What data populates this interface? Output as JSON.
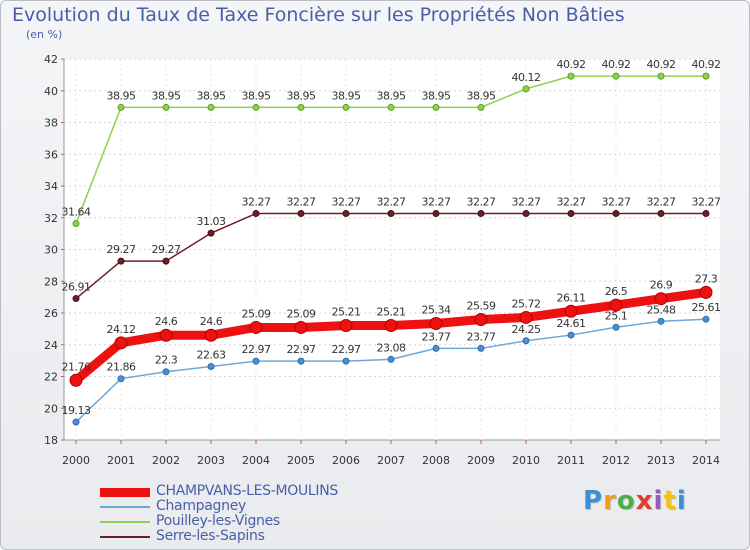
{
  "title": "Evolution du Taux de Taxe Foncière sur les Propriétés Non Bâties",
  "unit_label": "(en %)",
  "brand": {
    "text": "Proxiti",
    "colors": [
      "#3a8fd6",
      "#f39a1a",
      "#4caf4a",
      "#e53b2f",
      "#9b59b6",
      "#f1c40f",
      "#3a8fd6"
    ]
  },
  "chart_data": {
    "type": "line",
    "title": "Evolution du Taux de Taxe Foncière sur les Propriétés Non Bâties",
    "ylabel": "(en %)",
    "xlabel": "",
    "ylim": [
      18,
      42
    ],
    "yticks": [
      18,
      20,
      22,
      24,
      26,
      28,
      30,
      32,
      34,
      36,
      38,
      40,
      42
    ],
    "grid": true,
    "legend_position": "bottom-left",
    "categories": [
      "2000",
      "2001",
      "2002",
      "2003",
      "2004",
      "2005",
      "2006",
      "2007",
      "2008",
      "2009",
      "2010",
      "2011",
      "2012",
      "2013",
      "2014"
    ],
    "series": [
      {
        "name": "Serre-les-Sapins",
        "color": "#6b1f27",
        "values": [
          26.91,
          29.27,
          29.27,
          31.03,
          32.27,
          32.27,
          32.27,
          32.27,
          32.27,
          32.27,
          32.27,
          32.27,
          32.27,
          32.27,
          32.27
        ],
        "labels": [
          "26.91",
          "29.27",
          "29.27",
          "31.03",
          "32.27",
          "32.27",
          "32.27",
          "32.27",
          "32.27",
          "32.27",
          "32.27",
          "32.27",
          "32.27",
          "32.27",
          "32.27"
        ]
      },
      {
        "name": "Pouilley-les-Vignes",
        "color": "#8fd14f",
        "values": [
          31.64,
          38.95,
          38.95,
          38.95,
          38.95,
          38.95,
          38.95,
          38.95,
          38.95,
          38.95,
          40.12,
          40.92,
          40.92,
          40.92,
          40.92
        ],
        "labels": [
          "31.64",
          "38.95",
          "38.95",
          "38.95",
          "38.95",
          "38.95",
          "38.95",
          "38.95",
          "38.95",
          "38.95",
          "40.12",
          "40.92",
          "40.92",
          "40.92",
          "40.92"
        ]
      },
      {
        "name": "Champagney",
        "color": "#6ea7d8",
        "values": [
          19.13,
          21.86,
          22.3,
          22.63,
          22.97,
          22.97,
          22.97,
          23.08,
          23.77,
          23.77,
          24.25,
          24.61,
          25.1,
          25.48,
          25.61
        ],
        "labels": [
          "19.13",
          "21.86",
          "22.3",
          "22.63",
          "22.97",
          "22.97",
          "22.97",
          "23.08",
          "23.77",
          "23.77",
          "24.25",
          "24.61",
          "25.1",
          "25.48",
          "25.61"
        ]
      },
      {
        "name": "CHAMPVANS-LES-MOULINS",
        "color": "#ee1111",
        "values": [
          21.76,
          24.12,
          24.6,
          24.6,
          25.09,
          25.09,
          25.21,
          25.21,
          25.34,
          25.59,
          25.72,
          26.11,
          26.5,
          26.9,
          27.3
        ],
        "labels": [
          "21.76",
          "24.12",
          "24.6",
          "24.6",
          "25.09",
          "25.09",
          "25.21",
          "25.21",
          "25.34",
          "25.59",
          "25.72",
          "26.11",
          "26.5",
          "26.9",
          "27.3"
        ]
      }
    ],
    "legend_order": [
      "CHAMPVANS-LES-MOULINS",
      "Champagney",
      "Pouilley-les-Vignes",
      "Serre-les-Sapins"
    ]
  }
}
